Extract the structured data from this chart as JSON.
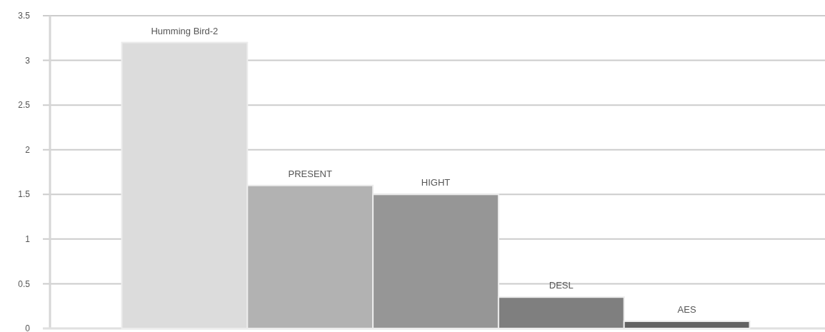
{
  "chart_data": {
    "type": "bar",
    "categories": [
      null
    ],
    "series": [
      {
        "name": "Humming Bird-2",
        "color": "#dcdcdc",
        "values": [
          3.2
        ]
      },
      {
        "name": "PRESENT",
        "color": "#b2b2b2",
        "values": [
          1.6
        ]
      },
      {
        "name": "HIGHT",
        "color": "#969696",
        "values": [
          1.5
        ]
      },
      {
        "name": "DESL",
        "color": "#7f7f7f",
        "values": [
          0.35
        ]
      },
      {
        "name": "AES",
        "color": "#636363",
        "values": [
          0.08
        ]
      }
    ],
    "ylim": [
      0,
      3.5
    ],
    "yticks": [
      0,
      0.5,
      1,
      1.5,
      2,
      2.5,
      3,
      3.5
    ],
    "grid": "y"
  }
}
